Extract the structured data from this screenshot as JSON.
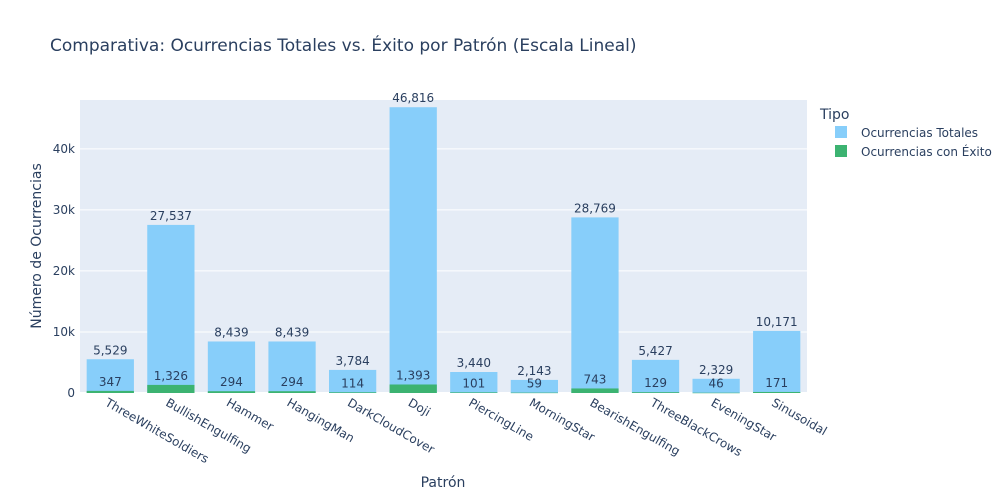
{
  "chart_data": {
    "type": "bar",
    "barmode": "overlay",
    "title": "Comparativa: Ocurrencias Totales vs. Éxito por Patrón (Escala Lineal)",
    "xlabel": "Patrón",
    "ylabel": "Número de Ocurrencias",
    "ylim": [
      0,
      48000
    ],
    "yticks": [
      0,
      10000,
      20000,
      30000,
      40000
    ],
    "ytick_labels": [
      "0",
      "10k",
      "20k",
      "30k",
      "40k"
    ],
    "grid": true,
    "legend": {
      "title": "Tipo",
      "position": "top-right"
    },
    "categories": [
      "ThreeWhiteSoldiers",
      "BullishEngulfing",
      "Hammer",
      "HangingMan",
      "DarkCloudCover",
      "Doji",
      "PiercingLine",
      "MorningStar",
      "BearishEngulfing",
      "ThreeBlackCrows",
      "EveningStar",
      "Sinusoidal"
    ],
    "series": [
      {
        "name": "Ocurrencias Totales",
        "color": "#87cefa",
        "values": [
          5529,
          27537,
          8439,
          8439,
          3784,
          46816,
          3440,
          2143,
          28769,
          5427,
          2329,
          10171
        ],
        "labels": [
          "5,529",
          "27,537",
          "8,439",
          "8,439",
          "3,784",
          "46,816",
          "3,440",
          "2,143",
          "28,769",
          "5,427",
          "2,329",
          "10,171"
        ]
      },
      {
        "name": "Ocurrencias con Éxito",
        "color": "#3cb371",
        "values": [
          347,
          1326,
          294,
          294,
          114,
          1393,
          101,
          59,
          743,
          129,
          46,
          171
        ],
        "labels": [
          "347",
          "1,326",
          "294",
          "294",
          "114",
          "1,393",
          "101",
          "59",
          "743",
          "129",
          "46",
          "171"
        ]
      }
    ]
  }
}
